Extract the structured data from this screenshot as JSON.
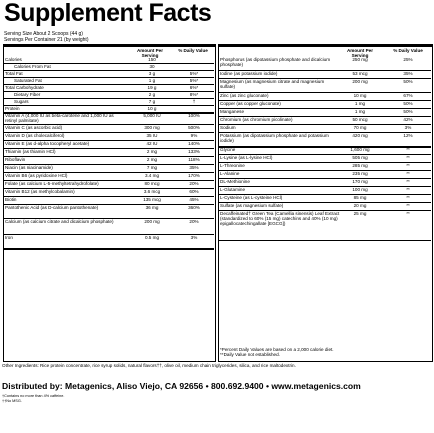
{
  "title": "Supplement Facts",
  "serving_size": "Serving Size About 2 Scoops (44 g)",
  "servings_per_container": "Servings Per Container 21 (by weight)",
  "left": {
    "amount_header": "Amount Per Serving",
    "dv_header": "% Daily Value",
    "rows": [
      {
        "name": "Calories",
        "amount": "150",
        "dv": "",
        "h": 7
      },
      {
        "name": "Calories From Fat",
        "amount": "30",
        "dv": "",
        "indent": 1,
        "h": 7
      },
      {
        "name": "Total Fat",
        "amount": "3 g",
        "dv": "5%*",
        "h": 7
      },
      {
        "name": "Saturated Fat",
        "amount": "1 g",
        "dv": "5%*",
        "indent": 1,
        "h": 7
      },
      {
        "name": "Total Carbohydrate",
        "amount": "19 g",
        "dv": "6%*",
        "h": 7
      },
      {
        "name": "Dietary Fiber",
        "amount": "2 g",
        "dv": "8%*",
        "indent": 1,
        "h": 7
      },
      {
        "name": "Sugars",
        "amount": "7 g",
        "dv": "†",
        "indent": 1,
        "h": 7
      },
      {
        "name": "Protein",
        "amount": "10 g",
        "dv": "",
        "h": 7
      },
      {
        "name": "Vitamin A (4,000 IU as beta-carotene and 1,000 IU as retinyl palmitate)",
        "amount": "5,000 IU",
        "dv": "100%",
        "h": 12
      },
      {
        "name": "Vitamin C (as ascorbic acid)",
        "amount": "300 mg",
        "dv": "500%",
        "h": 8
      },
      {
        "name": "Vitamin D (as cholecalciferol)",
        "amount": "35 IU",
        "dv": "9%",
        "h": 8
      },
      {
        "name": "Vitamin E (as d-alpha tocopheryl acetate)",
        "amount": "42 IU",
        "dv": "140%",
        "h": 8
      },
      {
        "name": "Thiamin (as thiamin HCl)",
        "amount": "2 mg",
        "dv": "133%",
        "h": 8
      },
      {
        "name": "Riboflavin",
        "amount": "2 mg",
        "dv": "118%",
        "h": 8
      },
      {
        "name": "Niacin (as niacinamide)",
        "amount": "7 mg",
        "dv": "35%",
        "h": 8
      },
      {
        "name": "Vitamin B6 (as pyridoxine HCl)",
        "amount": "3.4 mg",
        "dv": "170%",
        "h": 8
      },
      {
        "name": "Folate (as calcium L-5-methyltetrahydrofolate)",
        "amount": "80 mcg",
        "dv": "20%",
        "h": 8
      },
      {
        "name": "Vitamin B12 (as methylcobalamin)",
        "amount": "3.6 mcg",
        "dv": "60%",
        "h": 8
      },
      {
        "name": "Biotin",
        "amount": "135 mcg",
        "dv": "45%",
        "h": 8
      },
      {
        "name": "Pantothenic Acid (as D-calcium pantothenate)",
        "amount": "36 mg",
        "dv": "360%",
        "h": 14
      },
      {
        "name": "Calcium (as calcium citrate and dicalcium phosphate)",
        "amount": "200 mg",
        "dv": "20%",
        "h": 16
      },
      {
        "name": "Iron",
        "amount": "0.5 mg",
        "dv": "3%",
        "h": 14
      }
    ]
  },
  "right": {
    "amount_header": "Amount Per Serving",
    "dv_header": "% Daily Value",
    "rows": [
      {
        "name": "Phosphorus (as dipotassium phosphate and dicalcium phosphate)",
        "amount": "250 mg",
        "dv": "25%",
        "h": 14
      },
      {
        "name": "Iodine (as potassium iodide)",
        "amount": "53 mcg",
        "dv": "35%",
        "h": 8
      },
      {
        "name": "Magnesium (as magnesium citrate and magnesium sulfate)",
        "amount": "200 mg",
        "dv": "50%",
        "h": 14
      },
      {
        "name": "Zinc (as zinc gluconate)",
        "amount": "10 mg",
        "dv": "67%",
        "h": 8
      },
      {
        "name": "Copper (as copper gluconate)",
        "amount": "1 mg",
        "dv": "50%",
        "h": 8
      },
      {
        "name": "Manganese",
        "amount": "1 mg",
        "dv": "50%",
        "h": 8
      },
      {
        "name": "Chromium (as chromium picolinate)",
        "amount": "50 mcg",
        "dv": "42%",
        "h": 8
      },
      {
        "name": "Sodium",
        "amount": "70 mg",
        "dv": "3%",
        "h": 8
      },
      {
        "name": "Potassium (as dipotassium phosphate and potassium iodide)",
        "amount": "420 mg",
        "dv": "12%",
        "h": 14
      },
      {
        "name": "Glycine",
        "amount": "1,600 mg",
        "dv": "**",
        "h": 8
      },
      {
        "name": "L-Lysine (as L-lysine HCl)",
        "amount": "505 mg",
        "dv": "**",
        "h": 8
      },
      {
        "name": "L-Threonine",
        "amount": "285 mg",
        "dv": "**",
        "h": 8
      },
      {
        "name": "L-Alanine",
        "amount": "235 mg",
        "dv": "**",
        "h": 8
      },
      {
        "name": "DL-Methionine",
        "amount": "170 mg",
        "dv": "**",
        "h": 8
      },
      {
        "name": "L-Glutamine",
        "amount": "100 mg",
        "dv": "**",
        "h": 8
      },
      {
        "name": "L-Cysteine (as L-cysteine HCl)",
        "amount": "85 mg",
        "dv": "**",
        "h": 8
      },
      {
        "name": "Sulfate (as magnesium sulfate)",
        "amount": "20 mg",
        "dv": "**",
        "h": 8
      },
      {
        "name": "Decaffeinated† Green Tea (Camellia sinensis) Leaf Extract (standardized to 60% (15 mg) catechins and 40% (10 mg) epigallocatechingallate [EGCG])",
        "amount": "25 mg",
        "dv": "**",
        "h": 30
      }
    ],
    "footnote1": "*Percent Daily Values are based on a 2,000 calorie diet.",
    "footnote2": "**Daily Value not established."
  },
  "other_ingredients": "Other Ingredients: Rice protein concentrate, rice syrup solids, natural flavors††, olive oil, medium chain triglycerides, silica, and rice maltodextrin.",
  "distributed_by": "Distributed by: Metagenics, Aliso Viejo, CA 92656 • 800.692.9400 • www.metagenics.com",
  "foot_note_a": "†Contains no more than 4% caffeine.",
  "foot_note_b": "††No MSG."
}
